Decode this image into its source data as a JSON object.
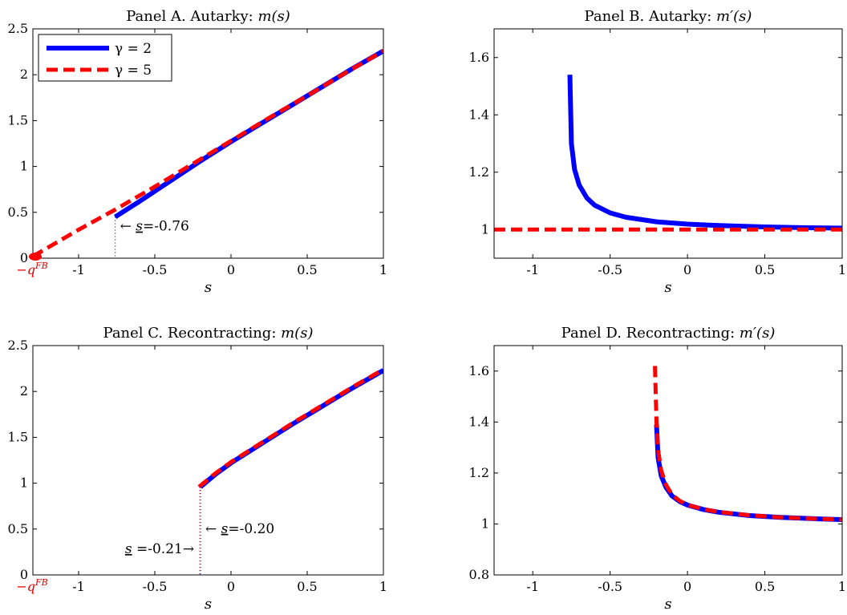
{
  "chart_data": [
    {
      "type": "line",
      "title": "Panel A. Autarky: m(s)",
      "xlabel": "s",
      "xlim": [
        -1.3,
        1
      ],
      "ylim": [
        0,
        2.5
      ],
      "xticks": [
        "-1",
        "-0.5",
        "0",
        "0.5",
        "1"
      ],
      "yticks": [
        "0",
        "0.5",
        "1",
        "1.5",
        "2",
        "2.5"
      ],
      "special_xtick": "−q^FB",
      "legend": {
        "position": "top-left",
        "entries": [
          "γ = 2",
          "γ = 5"
        ]
      },
      "annotations": [
        "← s=-0.76"
      ],
      "series": [
        {
          "name": "γ = 2",
          "color": "#0000ff",
          "style": "solid",
          "x": [
            -0.76,
            -0.6,
            -0.4,
            -0.2,
            0,
            0.2,
            0.4,
            0.6,
            0.8,
            1.0
          ],
          "y": [
            0.45,
            0.62,
            0.84,
            1.06,
            1.27,
            1.47,
            1.67,
            1.87,
            2.07,
            2.26
          ]
        },
        {
          "name": "γ = 5",
          "color": "#ff0000",
          "style": "dashed",
          "x": [
            -1.3,
            -1.0,
            -0.76,
            -0.5,
            -0.25,
            0,
            0.25,
            0.5,
            0.75,
            1.0
          ],
          "y": [
            0.02,
            0.31,
            0.53,
            0.78,
            1.03,
            1.28,
            1.53,
            1.77,
            2.02,
            2.26
          ]
        }
      ]
    },
    {
      "type": "line",
      "title": "Panel B. Autarky: m′(s)",
      "xlabel": "s",
      "xlim": [
        -1.25,
        1
      ],
      "ylim": [
        0.9,
        1.7
      ],
      "xticks": [
        "-1",
        "-0.5",
        "0",
        "0.5",
        "1"
      ],
      "yticks": [
        "1",
        "1.2",
        "1.4",
        "1.6"
      ],
      "series": [
        {
          "name": "γ = 2",
          "color": "#0000ff",
          "style": "solid",
          "x": [
            -0.76,
            -0.75,
            -0.73,
            -0.7,
            -0.65,
            -0.6,
            -0.5,
            -0.4,
            -0.2,
            0,
            0.2,
            0.5,
            0.8,
            1.0
          ],
          "y": [
            1.54,
            1.3,
            1.21,
            1.155,
            1.11,
            1.085,
            1.058,
            1.043,
            1.027,
            1.019,
            1.014,
            1.009,
            1.006,
            1.005
          ]
        },
        {
          "name": "γ = 5",
          "color": "#ff0000",
          "style": "dashed",
          "x": [
            -1.25,
            1.0
          ],
          "y": [
            1.0,
            1.0
          ]
        }
      ]
    },
    {
      "type": "line",
      "title": "Panel C. Recontracting: m(s)",
      "xlabel": "s",
      "xlim": [
        -1.3,
        1
      ],
      "ylim": [
        0,
        2.5
      ],
      "xticks": [
        "-1",
        "-0.5",
        "0",
        "0.5",
        "1"
      ],
      "yticks": [
        "0",
        "0.5",
        "1",
        "1.5",
        "2",
        "2.5"
      ],
      "special_xtick": "−q^FB",
      "annotations": [
        "← s=-0.20",
        "s =-0.21→"
      ],
      "series": [
        {
          "name": "γ = 2",
          "color": "#0000ff",
          "style": "solid",
          "x": [
            -0.2,
            -0.1,
            0,
            0.2,
            0.4,
            0.6,
            0.8,
            1.0
          ],
          "y": [
            0.96,
            1.1,
            1.22,
            1.43,
            1.64,
            1.84,
            2.04,
            2.23
          ]
        },
        {
          "name": "γ = 5",
          "color": "#ff0000",
          "style": "dashed",
          "x": [
            -0.21,
            -0.1,
            0,
            0.2,
            0.4,
            0.6,
            0.8,
            1.0
          ],
          "y": [
            0.96,
            1.11,
            1.23,
            1.44,
            1.65,
            1.85,
            2.05,
            2.24
          ]
        }
      ]
    },
    {
      "type": "line",
      "title": "Panel D. Recontracting: m′(s)",
      "xlabel": "s",
      "xlim": [
        -1.25,
        1
      ],
      "ylim": [
        0.8,
        1.7
      ],
      "xticks": [
        "-1",
        "-0.5",
        "0",
        "0.5",
        "1"
      ],
      "yticks": [
        "0.8",
        "1",
        "1.2",
        "1.4",
        "1.6"
      ],
      "series": [
        {
          "name": "γ = 2",
          "color": "#0000ff",
          "style": "solid",
          "x": [
            -0.2,
            -0.19,
            -0.17,
            -0.14,
            -0.1,
            -0.05,
            0,
            0.1,
            0.2,
            0.4,
            0.6,
            0.8,
            1.0
          ],
          "y": [
            1.39,
            1.26,
            1.19,
            1.145,
            1.11,
            1.088,
            1.074,
            1.057,
            1.046,
            1.033,
            1.026,
            1.021,
            1.017
          ]
        },
        {
          "name": "γ = 5",
          "color": "#ff0000",
          "style": "dashed",
          "x": [
            -0.21,
            -0.205,
            -0.2,
            -0.19,
            -0.17,
            -0.14,
            -0.1,
            -0.05,
            0,
            0.1,
            0.2,
            0.4,
            0.6,
            0.8,
            1.0
          ],
          "y": [
            1.62,
            1.5,
            1.4,
            1.29,
            1.21,
            1.155,
            1.115,
            1.09,
            1.075,
            1.058,
            1.047,
            1.034,
            1.026,
            1.021,
            1.017
          ]
        }
      ]
    }
  ]
}
